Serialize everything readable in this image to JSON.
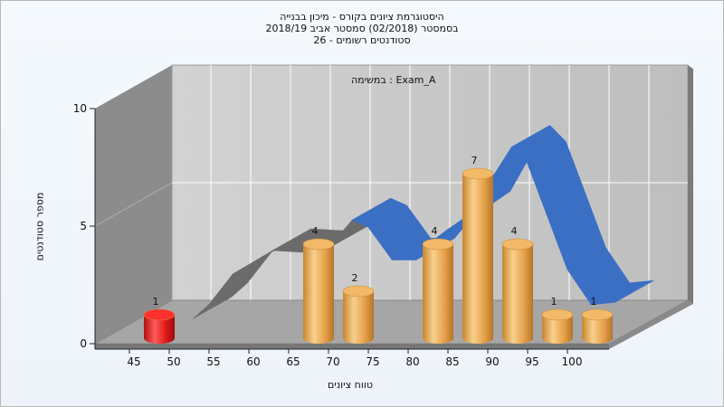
{
  "chart_data": {
    "type": "bar",
    "title_lines": [
      "היסטוגרמת ציונים בקורס - מיכון בבנייה",
      "בסמסטר  (02/2018)  סמסטר אביב 2018/19",
      "סטודנטים רשומים - 26"
    ],
    "annotation": "במשימה : Exam_A",
    "xlabel": "טווח ציונים",
    "ylabel": "מספר סטודנטים",
    "ylim": [
      0,
      10
    ],
    "yticks": [
      0,
      5,
      10
    ],
    "xticks": [
      45,
      50,
      55,
      60,
      65,
      70,
      75,
      80,
      85,
      90,
      95,
      100
    ],
    "bars": [
      {
        "x": 45,
        "value": 1,
        "color": "#e41b1b"
      },
      {
        "x": 65,
        "value": 4,
        "color": "#e9a34a"
      },
      {
        "x": 70,
        "value": 2,
        "color": "#e9a34a"
      },
      {
        "x": 80,
        "value": 4,
        "color": "#e9a34a"
      },
      {
        "x": 85,
        "value": 7,
        "color": "#e9a34a"
      },
      {
        "x": 90,
        "value": 4,
        "color": "#e9a34a"
      },
      {
        "x": 95,
        "value": 1,
        "color": "#e9a34a"
      },
      {
        "x": 100,
        "value": 1,
        "color": "#e9a34a"
      }
    ],
    "curve": {
      "x": [
        50,
        52,
        55,
        60,
        65,
        67,
        70,
        72,
        75,
        78,
        80,
        82,
        85,
        87,
        90,
        92,
        95,
        97,
        100,
        103
      ],
      "y": [
        0.6,
        1.2,
        2.5,
        3.5,
        3.4,
        3.6,
        4.8,
        4.5,
        3.1,
        3.1,
        3.9,
        4.4,
        5.1,
        6.3,
        7.9,
        7.2,
        4.5,
        2.7,
        1.2,
        1.3
      ]
    },
    "grid": true,
    "legend": "none"
  }
}
